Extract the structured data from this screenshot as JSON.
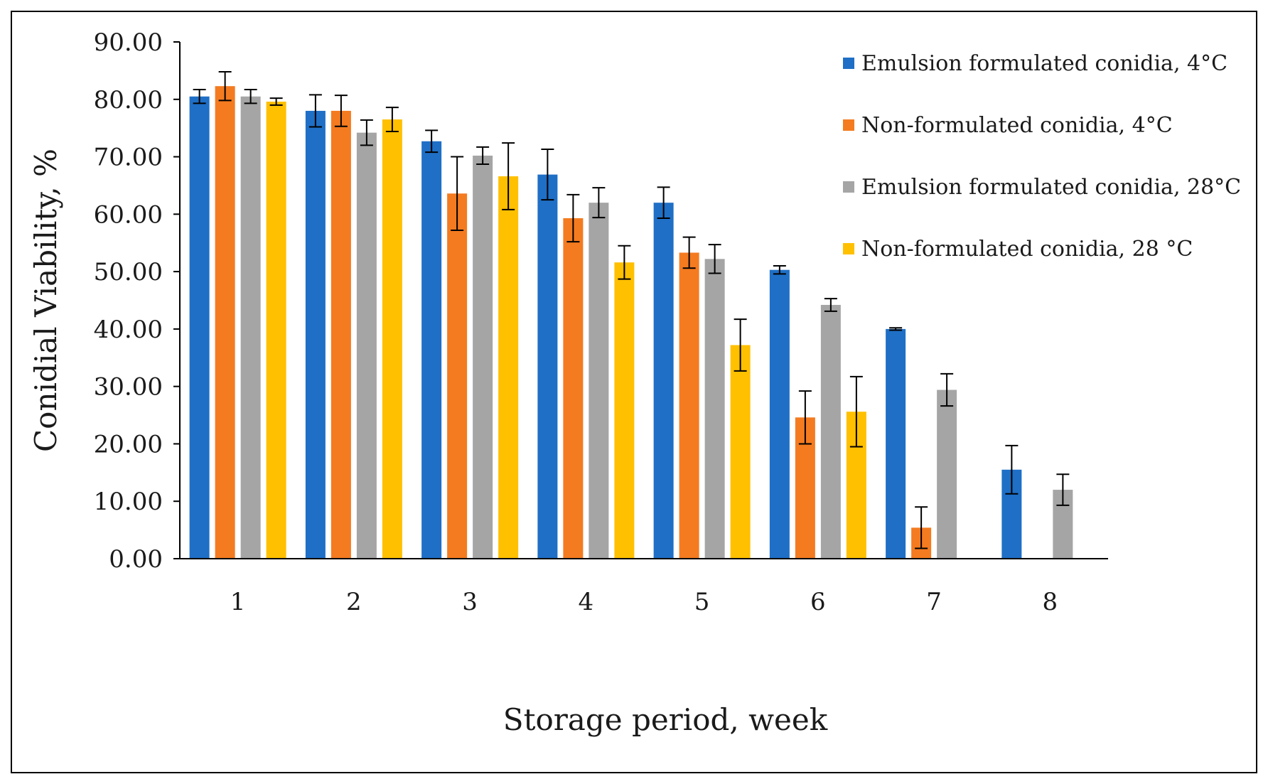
{
  "chart_data": {
    "type": "bar",
    "title": "",
    "xlabel": "Storage period, week",
    "ylabel": "Conidial Viability, %",
    "ylim": [
      0,
      90
    ],
    "ytick_step": 10,
    "ytick_labels": [
      "0.00",
      "10.00",
      "20.00",
      "30.00",
      "40.00",
      "50.00",
      "60.00",
      "70.00",
      "80.00",
      "90.00"
    ],
    "categories": [
      "1",
      "2",
      "3",
      "4",
      "5",
      "6",
      "7",
      "8"
    ],
    "grid": false,
    "legend_position": "top-right",
    "series": [
      {
        "name": "Emulsion formulated conidia, 4°C",
        "color": "#1F6FC6",
        "values": [
          80.5,
          78.0,
          72.7,
          66.9,
          62.0,
          50.3,
          40.0,
          15.5
        ],
        "errors": [
          1.2,
          2.8,
          1.9,
          4.4,
          2.7,
          0.7,
          0.2,
          4.2
        ]
      },
      {
        "name": "Non-formulated conidia, 4°C",
        "color": "#F47B20",
        "values": [
          82.3,
          78.0,
          63.6,
          59.3,
          53.3,
          24.6,
          5.4,
          null
        ],
        "errors": [
          2.5,
          2.7,
          6.4,
          4.1,
          2.7,
          4.6,
          3.6,
          null
        ]
      },
      {
        "name": "Emulsion formulated conidia, 28°C",
        "color": "#A5A5A5",
        "values": [
          80.5,
          74.2,
          70.2,
          62.0,
          52.2,
          44.2,
          29.4,
          12.0
        ],
        "errors": [
          1.2,
          2.2,
          1.5,
          2.6,
          2.5,
          1.1,
          2.8,
          2.7
        ]
      },
      {
        "name": "Non-formulated conidia, 28 °C",
        "color": "#FFC000",
        "values": [
          79.6,
          76.5,
          66.6,
          51.6,
          37.2,
          25.6,
          null,
          null
        ],
        "errors": [
          0.6,
          2.1,
          5.8,
          2.9,
          4.5,
          6.1,
          null,
          null
        ]
      }
    ]
  }
}
